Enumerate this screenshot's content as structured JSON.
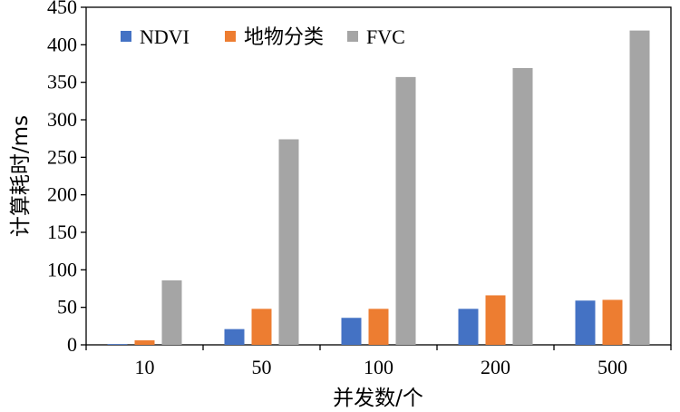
{
  "chart_data": {
    "type": "bar",
    "categories": [
      "10",
      "50",
      "100",
      "200",
      "500"
    ],
    "series": [
      {
        "name": "NDVI",
        "color": "#4472C4",
        "values": [
          1,
          21,
          36,
          48,
          59
        ]
      },
      {
        "name": "地物分类",
        "color": "#ED7D31",
        "values": [
          6,
          48,
          48,
          66,
          60
        ]
      },
      {
        "name": "FVC",
        "color": "#A5A5A5",
        "values": [
          86,
          274,
          357,
          369,
          419
        ]
      }
    ],
    "xlabel": "并发数/个",
    "ylabel": "计算耗时/ms",
    "ylim": [
      0,
      450
    ],
    "yticks": [
      "0",
      "50",
      "100",
      "150",
      "200",
      "250",
      "300",
      "350",
      "400",
      "450"
    ],
    "grid": false,
    "legend": "top-left"
  }
}
